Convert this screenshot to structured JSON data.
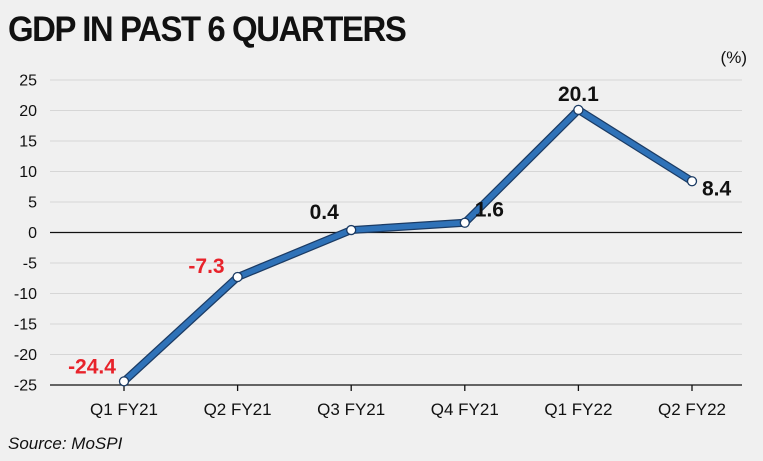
{
  "chart_data": {
    "type": "line",
    "title": "GDP IN PAST 6 QUARTERS",
    "unit_label": "(%)",
    "source": "Source: MoSPI",
    "categories": [
      "Q1 FY21",
      "Q2 FY21",
      "Q3 FY21",
      "Q4 FY21",
      "Q1 FY22",
      "Q2 FY22"
    ],
    "values": [
      -24.4,
      -7.3,
      0.4,
      1.6,
      20.1,
      8.4
    ],
    "data_labels": [
      "-24.4",
      "-7.3",
      "0.4",
      "1.6",
      "20.1",
      "8.4"
    ],
    "yticks": [
      25,
      20,
      15,
      10,
      5,
      0,
      -5,
      -10,
      -15,
      -20,
      -25
    ],
    "ylim": [
      -25,
      25
    ],
    "grid": true,
    "colors": {
      "line": "#2f72b8",
      "line_outline": "#1b3b64",
      "negative_label": "#e8232b",
      "positive_label": "#111111",
      "grid": "#d6d6d6"
    }
  }
}
